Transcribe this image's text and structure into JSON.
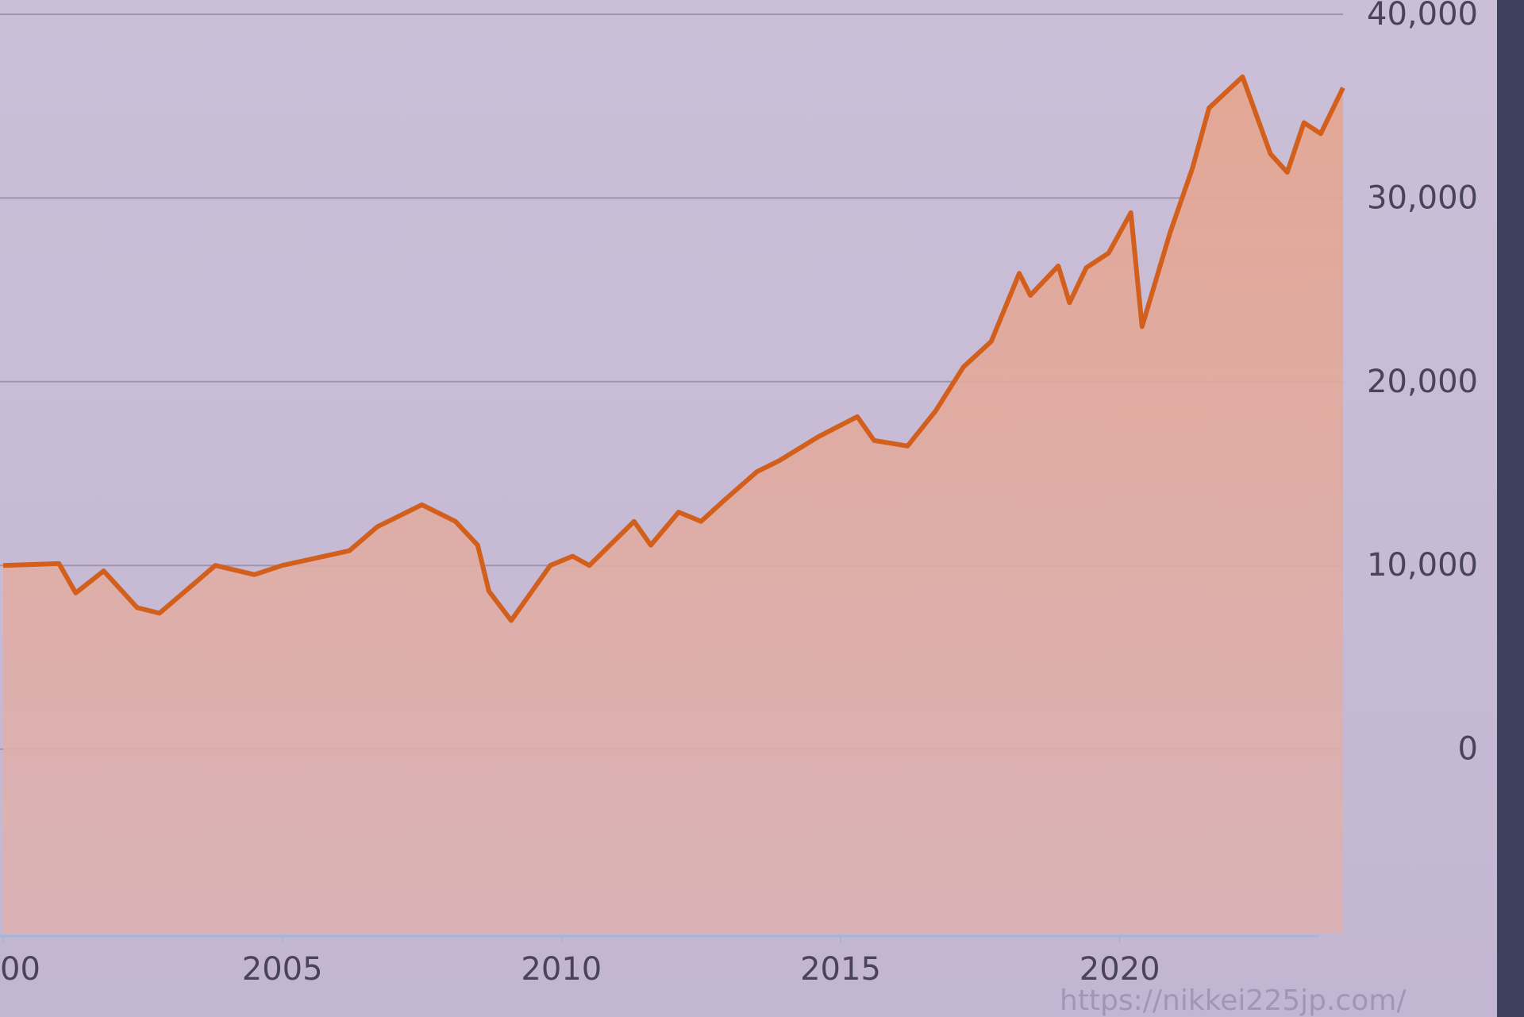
{
  "chart_data": {
    "type": "area",
    "x": [
      2000.0,
      2001.0,
      2001.3,
      2001.8,
      2002.4,
      2002.8,
      2003.8,
      2004.5,
      2005.0,
      2006.2,
      2006.7,
      2007.5,
      2008.1,
      2008.5,
      2008.7,
      2009.1,
      2009.8,
      2010.2,
      2010.5,
      2011.3,
      2011.6,
      2012.1,
      2012.5,
      2012.9,
      2013.5,
      2013.9,
      2014.6,
      2015.3,
      2015.6,
      2016.2,
      2016.7,
      2017.2,
      2017.7,
      2018.2,
      2018.4,
      2018.9,
      2019.1,
      2019.4,
      2019.8,
      2020.2,
      2020.4,
      2020.9,
      2021.3,
      2021.6,
      2022.2,
      2022.7,
      2023.0,
      2023.3,
      2023.6,
      2024.0
    ],
    "series": [
      {
        "color": "#d2601c",
        "values": [
          10000,
          10100,
          8500,
          9700,
          7700,
          7400,
          10000,
          9500,
          10000,
          10800,
          12100,
          13300,
          12400,
          11100,
          8600,
          7000,
          10000,
          10500,
          10000,
          12400,
          11100,
          12900,
          12400,
          13500,
          15100,
          15700,
          17000,
          18100,
          16800,
          16500,
          18400,
          20800,
          22200,
          25900,
          24700,
          26300,
          24300,
          26200,
          27000,
          29200,
          23000,
          28100,
          31600,
          34900,
          36600,
          32400,
          31400,
          34100,
          33500,
          36000
        ]
      }
    ],
    "xlim": [
      2000,
      2024
    ],
    "xticks": [
      {
        "value": 2000,
        "label": "00"
      },
      2005,
      2010,
      2015,
      2020
    ],
    "ylim": [
      -10000,
      40000
    ],
    "yticks": [
      0,
      {
        "value": 10000,
        "label": "10,000"
      },
      {
        "value": 20000,
        "label": "20,000"
      },
      {
        "value": 30000,
        "label": "30,000"
      },
      {
        "value": 40000,
        "label": "40,000"
      }
    ],
    "grid": true,
    "annotation": "https://nikkei225jp.com/"
  }
}
